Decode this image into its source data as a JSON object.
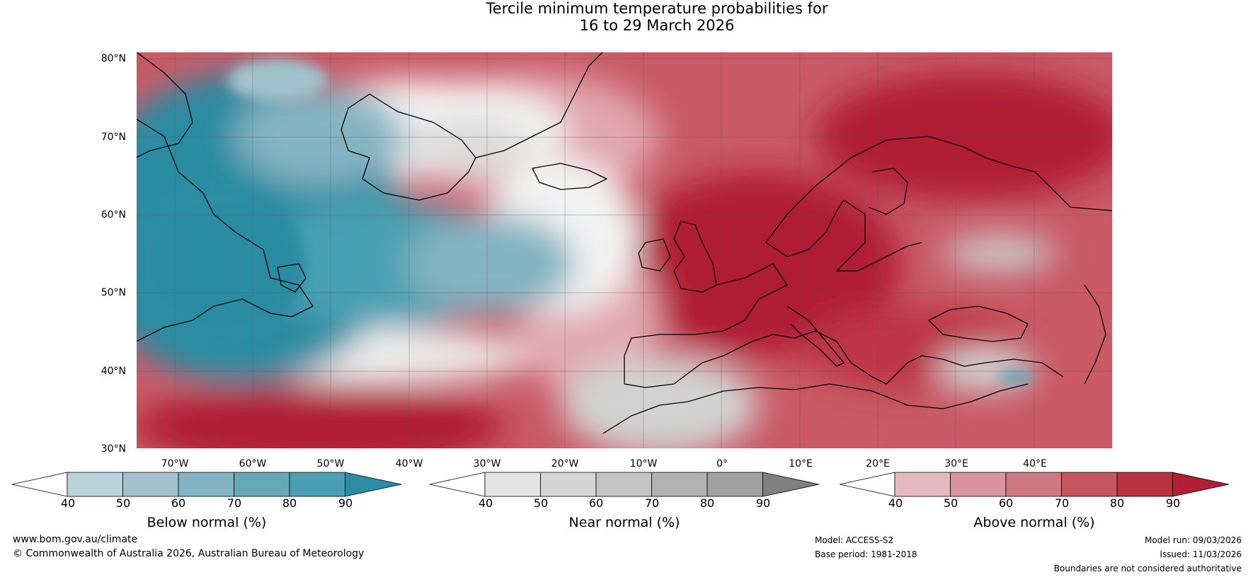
{
  "title": {
    "line1": "Tercile minimum temperature probabilities for",
    "line2": "16 to 29 March 2026"
  },
  "map": {
    "lat_labels": [
      "80°N",
      "70°N",
      "60°N",
      "50°N",
      "40°N",
      "30°N"
    ],
    "lon_labels": [
      "70°W",
      "60°W",
      "50°W",
      "40°W",
      "30°W",
      "20°W",
      "10°W",
      "0°",
      "10°E",
      "20°E",
      "30°E",
      "40°E"
    ],
    "lat_range": [
      30,
      81
    ],
    "lon_range": [
      -75,
      50
    ]
  },
  "colorbars": [
    {
      "title": "Below normal (%)",
      "ticks": [
        "40",
        "50",
        "60",
        "70",
        "80",
        "90"
      ],
      "colors": [
        "#ffffff",
        "#bcd2da",
        "#a1c2cc",
        "#84b4c2",
        "#65a8b8",
        "#4aa0b2",
        "#2b8ca3"
      ]
    },
    {
      "title": "Near normal (%)",
      "ticks": [
        "40",
        "50",
        "60",
        "70",
        "80",
        "90"
      ],
      "colors": [
        "#ffffff",
        "#e4e4e4",
        "#d5d5d5",
        "#c4c4c4",
        "#b2b2b2",
        "#a0a0a0",
        "#808080"
      ]
    },
    {
      "title": "Above normal (%)",
      "ticks": [
        "40",
        "50",
        "60",
        "70",
        "80",
        "90"
      ],
      "colors": [
        "#ffffff",
        "#e5b9c0",
        "#db949f",
        "#d07882",
        "#c7555f",
        "#b9323f",
        "#b11e36"
      ]
    }
  ],
  "footer": {
    "website": "www.bom.gov.au/climate",
    "copyright": "© Commonwealth of Australia 2026, Australian Bureau of Meteorology",
    "model": "Model: ACCESS-S2",
    "base_period": "Base period: 1981-2018",
    "model_run": "Model run: 09/03/2026",
    "issued": "Issued: 11/03/2026",
    "disclaimer": "Boundaries are not considered authoritative"
  }
}
